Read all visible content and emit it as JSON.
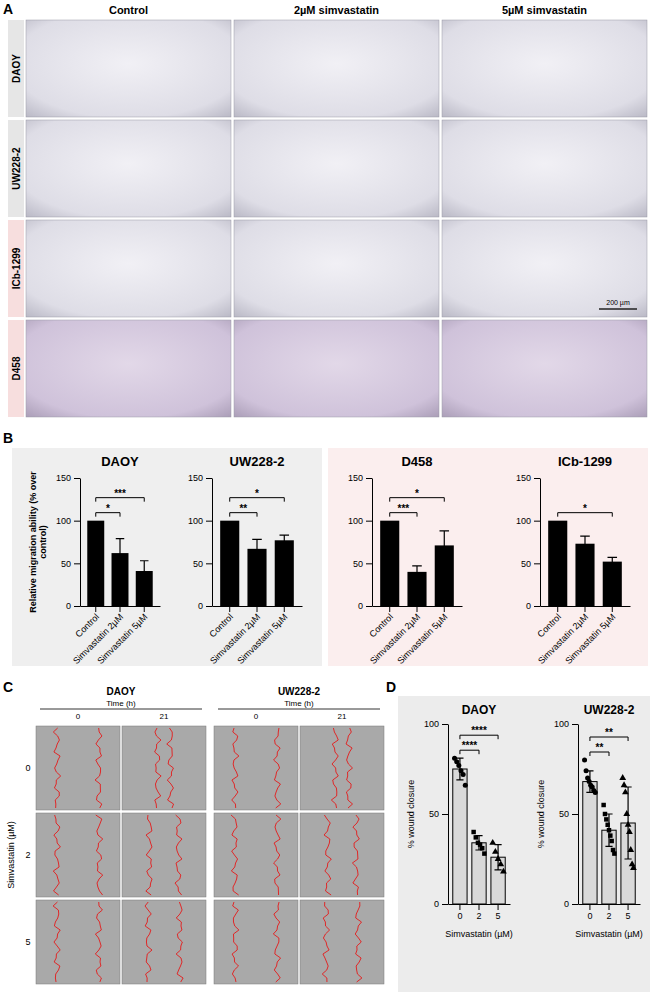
{
  "panel_labels": [
    "A",
    "B",
    "C",
    "D"
  ],
  "panel_a": {
    "columns": [
      "Control",
      "2µM simvastatin",
      "5µM simvastatin"
    ],
    "rows": [
      "DAOY",
      "UW228-2",
      "ICb-1299",
      "D458"
    ],
    "scale_bar": "200 µm"
  },
  "panel_c": {
    "cell_lines": [
      "DAOY",
      "UW228-2"
    ],
    "time_title": "Time (h)",
    "times": [
      "0",
      "21"
    ],
    "y_title": "Simvastatin (µM)",
    "doses": [
      "0",
      "2",
      "5"
    ]
  },
  "chart_data": [
    {
      "type": "bar",
      "title": "DAOY",
      "y_label": "Relative migration ability (% over control)",
      "categories": [
        "Control",
        "Simvastatin 2µM",
        "Simvastatin 5µM"
      ],
      "values": [
        100,
        62,
        41
      ],
      "errors": [
        null,
        17,
        12
      ],
      "color": "#000000",
      "ylim": [
        0,
        150
      ],
      "yticks": [
        0,
        50,
        100,
        150
      ],
      "significance": [
        {
          "pair": [
            "Control",
            "Simvastatin 2µM"
          ],
          "label": "*"
        },
        {
          "pair": [
            "Control",
            "Simvastatin 5µM"
          ],
          "label": "***"
        }
      ]
    },
    {
      "type": "bar",
      "title": "UW228-2",
      "categories": [
        "Control",
        "Simvastatin 2µM",
        "Simvastatin 5µM"
      ],
      "values": [
        100,
        67,
        77
      ],
      "errors": [
        null,
        11,
        6
      ],
      "color": "#000000",
      "ylim": [
        0,
        150
      ],
      "yticks": [
        0,
        50,
        100,
        150
      ],
      "significance": [
        {
          "pair": [
            "Control",
            "Simvastatin 2µM"
          ],
          "label": "**"
        },
        {
          "pair": [
            "Control",
            "Simvastatin 5µM"
          ],
          "label": "*"
        }
      ]
    },
    {
      "type": "bar",
      "title": "D458",
      "categories": [
        "Control",
        "Simvastatin 2µM",
        "Simvastatin 5µM"
      ],
      "values": [
        100,
        40,
        71
      ],
      "errors": [
        null,
        7,
        17
      ],
      "color": "#000000",
      "ylim": [
        0,
        150
      ],
      "yticks": [
        0,
        50,
        100,
        150
      ],
      "significance": [
        {
          "pair": [
            "Control",
            "Simvastatin 2µM"
          ],
          "label": "***"
        },
        {
          "pair": [
            "Control",
            "Simvastatin 5µM"
          ],
          "label": "*"
        }
      ]
    },
    {
      "type": "bar",
      "title": "ICb-1299",
      "categories": [
        "Control",
        "Simvastatin 2µM",
        "Simvastatin 5µM"
      ],
      "values": [
        100,
        73,
        52
      ],
      "errors": [
        null,
        9,
        5
      ],
      "color": "#000000",
      "ylim": [
        0,
        150
      ],
      "yticks": [
        0,
        50,
        100,
        150
      ],
      "significance": [
        {
          "pair": [
            "Control",
            "Simvastatin 5µM"
          ],
          "label": "*"
        }
      ]
    },
    {
      "type": "bar",
      "title": "DAOY",
      "y_label": "% wound closure",
      "x_label": "Simvastatin (µM)",
      "categories": [
        "0",
        "2",
        "5"
      ],
      "values": [
        75,
        34,
        26
      ],
      "errors": [
        6,
        4,
        7
      ],
      "color": "#d9d9d9",
      "points": [
        [
          81,
          79,
          77,
          74,
          72,
          66
        ],
        [
          40,
          37,
          34,
          33,
          31,
          28
        ],
        [
          34,
          29,
          25,
          22,
          18
        ]
      ],
      "ylim": [
        0,
        100
      ],
      "yticks": [
        0,
        50,
        100
      ],
      "significance": [
        {
          "pair": [
            "0",
            "2"
          ],
          "label": "****"
        },
        {
          "pair": [
            "0",
            "5"
          ],
          "label": "****"
        }
      ]
    },
    {
      "type": "bar",
      "title": "UW228-2",
      "y_label": "% wound closure",
      "x_label": "Simvastatin (µM)",
      "categories": [
        "0",
        "2",
        "5"
      ],
      "values": [
        68,
        41,
        45
      ],
      "errors": [
        6,
        9,
        20
      ],
      "color": "#d9d9d9",
      "points": [
        [
          80,
          74,
          70,
          68,
          66,
          65,
          63,
          62
        ],
        [
          55,
          50,
          47,
          44,
          41,
          38,
          35,
          30,
          28
        ],
        [
          70,
          66,
          62,
          50,
          44,
          40,
          30,
          22,
          20
        ]
      ],
      "ylim": [
        0,
        100
      ],
      "yticks": [
        0,
        50,
        100
      ],
      "significance": [
        {
          "pair": [
            "0",
            "2"
          ],
          "label": "**"
        },
        {
          "pair": [
            "0",
            "5"
          ],
          "label": "**"
        }
      ]
    }
  ]
}
